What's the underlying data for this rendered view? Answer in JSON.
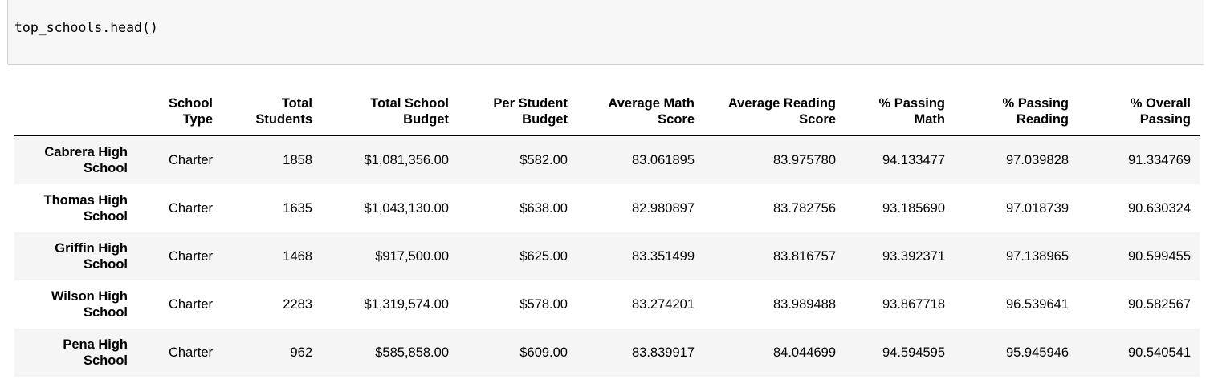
{
  "notebook": {
    "input_code": "top_schools.head()"
  },
  "dataframe": {
    "index_header": "",
    "columns": [
      "School Type",
      "Total Students",
      "Total School Budget",
      "Per Student Budget",
      "Average Math Score",
      "Average Reading Score",
      "% Passing Math",
      "% Passing Reading",
      "% Overall Passing"
    ],
    "rows": [
      {
        "index": "Cabrera High School",
        "cells": [
          "Charter",
          "1858",
          "$1,081,356.00",
          "$582.00",
          "83.061895",
          "83.975780",
          "94.133477",
          "97.039828",
          "91.334769"
        ]
      },
      {
        "index": "Thomas High School",
        "cells": [
          "Charter",
          "1635",
          "$1,043,130.00",
          "$638.00",
          "82.980897",
          "83.782756",
          "93.185690",
          "97.018739",
          "90.630324"
        ]
      },
      {
        "index": "Griffin High School",
        "cells": [
          "Charter",
          "1468",
          "$917,500.00",
          "$625.00",
          "83.351499",
          "83.816757",
          "93.392371",
          "97.138965",
          "90.599455"
        ]
      },
      {
        "index": "Wilson High School",
        "cells": [
          "Charter",
          "2283",
          "$1,319,574.00",
          "$578.00",
          "83.274201",
          "83.989488",
          "93.867718",
          "96.539641",
          "90.582567"
        ]
      },
      {
        "index": "Pena High School",
        "cells": [
          "Charter",
          "962",
          "$585,858.00",
          "$609.00",
          "83.839917",
          "84.044699",
          "94.594595",
          "95.945946",
          "90.540541"
        ]
      }
    ]
  },
  "colors": {
    "input_background": "#f7f7f7",
    "input_border": "#cfcfcf",
    "stripe_row": "#f5f5f5",
    "header_rule": "#000000"
  }
}
